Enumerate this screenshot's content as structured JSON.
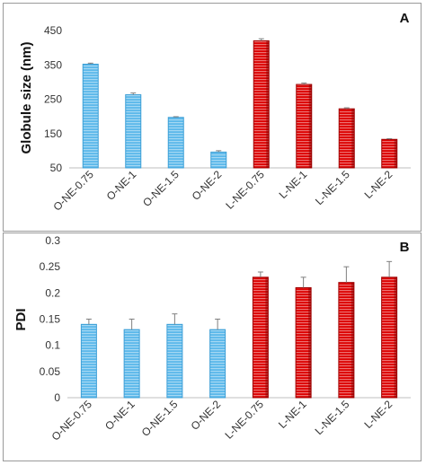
{
  "chart_data": [
    {
      "panel_label": "A",
      "type": "bar",
      "ylabel": "Globule size (nm)",
      "ylim": [
        50,
        450
      ],
      "yticks": [
        50,
        150,
        250,
        350,
        450
      ],
      "categories": [
        "O-NE-0.75",
        "O-NE-1",
        "O-NE-1.5",
        "O-NE-2",
        "L-NE-0.75",
        "L-NE-1",
        "L-NE-1.5",
        "L-NE-2"
      ],
      "values": [
        352,
        263,
        197,
        96,
        420,
        293,
        222,
        133
      ],
      "errors": [
        3,
        5,
        2,
        4,
        6,
        4,
        3,
        2
      ],
      "colors": [
        "#5bb8ea",
        "#5bb8ea",
        "#5bb8ea",
        "#5bb8ea",
        "#dc0000",
        "#dc0000",
        "#dc0000",
        "#dc0000"
      ],
      "grid": false
    },
    {
      "panel_label": "B",
      "type": "bar",
      "ylabel": "PDI",
      "ylim": [
        0,
        0.3
      ],
      "yticks": [
        "0",
        "0.05",
        "0.1",
        "0.15",
        "0.2",
        "0.25",
        "0.3"
      ],
      "categories": [
        "O-NE-0.75",
        "O-NE-1",
        "O-NE-1.5",
        "O-NE-2",
        "L-NE-0.75",
        "L-NE-1",
        "L-NE-1.5",
        "L-NE-2"
      ],
      "values": [
        0.14,
        0.13,
        0.14,
        0.13,
        0.23,
        0.21,
        0.22,
        0.23
      ],
      "errors": [
        0.01,
        0.02,
        0.02,
        0.02,
        0.01,
        0.02,
        0.03,
        0.03
      ],
      "colors": [
        "#5bb8ea",
        "#5bb8ea",
        "#5bb8ea",
        "#5bb8ea",
        "#dc0000",
        "#dc0000",
        "#dc0000",
        "#dc0000"
      ],
      "grid": false
    }
  ]
}
